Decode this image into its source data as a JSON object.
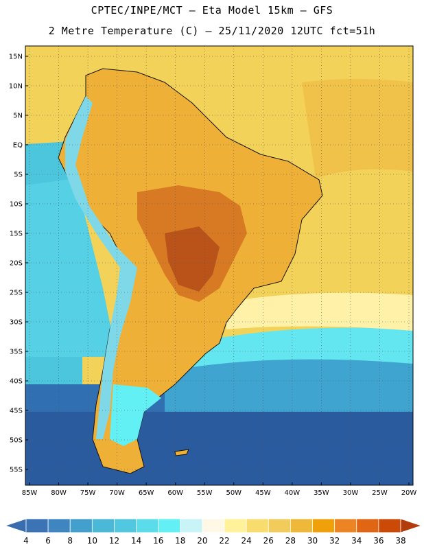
{
  "header": {
    "line1": "CPTEC/INPE/MCT –  Eta Model 15km – GFS",
    "line2": "2 Metre Temperature (C) – 25/11/2020 12UTC fct=51h"
  },
  "map": {
    "region": "South America",
    "lon_range": [
      -85,
      -20
    ],
    "lat_range": [
      -58,
      17
    ],
    "lat_ticks": [
      {
        "value": 15,
        "label": "15N"
      },
      {
        "value": 10,
        "label": "10N"
      },
      {
        "value": 5,
        "label": "5N"
      },
      {
        "value": 0,
        "label": "EQ"
      },
      {
        "value": -5,
        "label": "5S"
      },
      {
        "value": -10,
        "label": "10S"
      },
      {
        "value": -15,
        "label": "15S"
      },
      {
        "value": -20,
        "label": "20S"
      },
      {
        "value": -25,
        "label": "25S"
      },
      {
        "value": -30,
        "label": "30S"
      },
      {
        "value": -35,
        "label": "35S"
      },
      {
        "value": -40,
        "label": "40S"
      },
      {
        "value": -45,
        "label": "45S"
      },
      {
        "value": -50,
        "label": "50S"
      },
      {
        "value": -55,
        "label": "55S"
      }
    ],
    "lon_ticks": [
      {
        "value": -85,
        "label": "85W"
      },
      {
        "value": -80,
        "label": "80W"
      },
      {
        "value": -75,
        "label": "75W"
      },
      {
        "value": -70,
        "label": "70W"
      },
      {
        "value": -65,
        "label": "65W"
      },
      {
        "value": -60,
        "label": "60W"
      },
      {
        "value": -55,
        "label": "55W"
      },
      {
        "value": -50,
        "label": "50W"
      },
      {
        "value": -45,
        "label": "45W"
      },
      {
        "value": -40,
        "label": "40W"
      },
      {
        "value": -35,
        "label": "35W"
      },
      {
        "value": -30,
        "label": "30W"
      },
      {
        "value": -25,
        "label": "25W"
      },
      {
        "value": -20,
        "label": "20W"
      }
    ]
  },
  "colorbar": {
    "labels": [
      "4",
      "6",
      "8",
      "10",
      "12",
      "14",
      "16",
      "18",
      "20",
      "22",
      "24",
      "26",
      "28",
      "30",
      "32",
      "34",
      "36",
      "38"
    ],
    "low_color": "#3a6cb0",
    "high_color": "#b23c0c",
    "bin_colors": [
      "#3b73b5",
      "#3f86c1",
      "#43a0cc",
      "#4cb8d8",
      "#52c8e0",
      "#5adcea",
      "#63f0f5",
      "#c8f4f8",
      "#fff8e6",
      "#fff29a",
      "#f8dc6e",
      "#f2cc5a",
      "#eeb83a",
      "#f0a10a",
      "#ec8424",
      "#e06614",
      "#cc4a08"
    ]
  },
  "colors": {
    "ocean_south": "#2f5fa3",
    "ocean_mid": "#3b8fc6",
    "ocean_cool": "#4cc6dc",
    "ocean_warm": "#f3d86a",
    "land_warm": "#efb038",
    "land_hot": "#d87a24",
    "land_hottest": "#b9531a",
    "andes_cold": "#7fd8e8"
  }
}
